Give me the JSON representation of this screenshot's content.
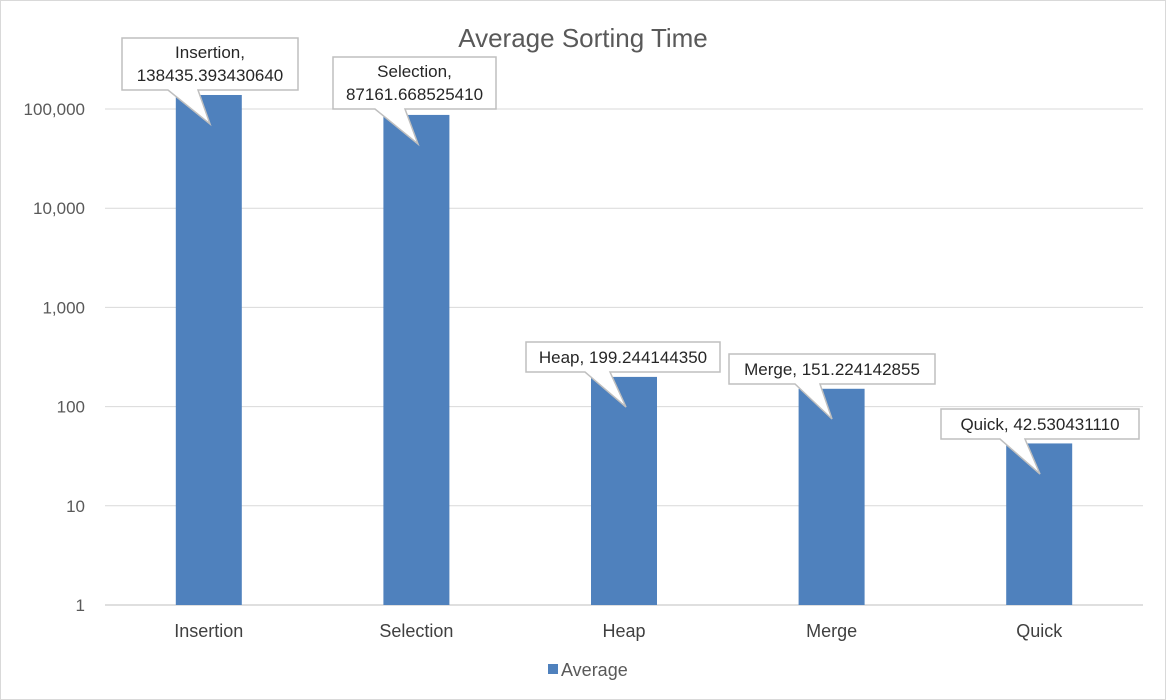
{
  "chart_data": {
    "type": "bar",
    "title": "Average Sorting Time",
    "xlabel": "",
    "ylabel": "",
    "scale": "log",
    "ylim": [
      1,
      1000000
    ],
    "yticks": [
      {
        "value": 1,
        "label": "1"
      },
      {
        "value": 10,
        "label": "10"
      },
      {
        "value": 100,
        "label": "100"
      },
      {
        "value": 1000,
        "label": "1,000"
      },
      {
        "value": 10000,
        "label": "10,000"
      },
      {
        "value": 100000,
        "label": "100,000"
      }
    ],
    "categories": [
      "Insertion",
      "Selection",
      "Heap",
      "Merge",
      "Quick"
    ],
    "series": [
      {
        "name": "Average",
        "color": "#4f81bd",
        "values": [
          138435.39343064,
          87161.66852541,
          199.24414435,
          151.224142855,
          42.53043111
        ]
      }
    ],
    "data_labels": [
      [
        "Insertion,",
        "138435.393430640"
      ],
      [
        "Selection,",
        "87161.668525410"
      ],
      [
        "Heap, 199.244144350"
      ],
      [
        "Merge, 151.224142855"
      ],
      [
        "Quick, 42.530431110"
      ]
    ],
    "grid": true,
    "legend": "bottom"
  }
}
